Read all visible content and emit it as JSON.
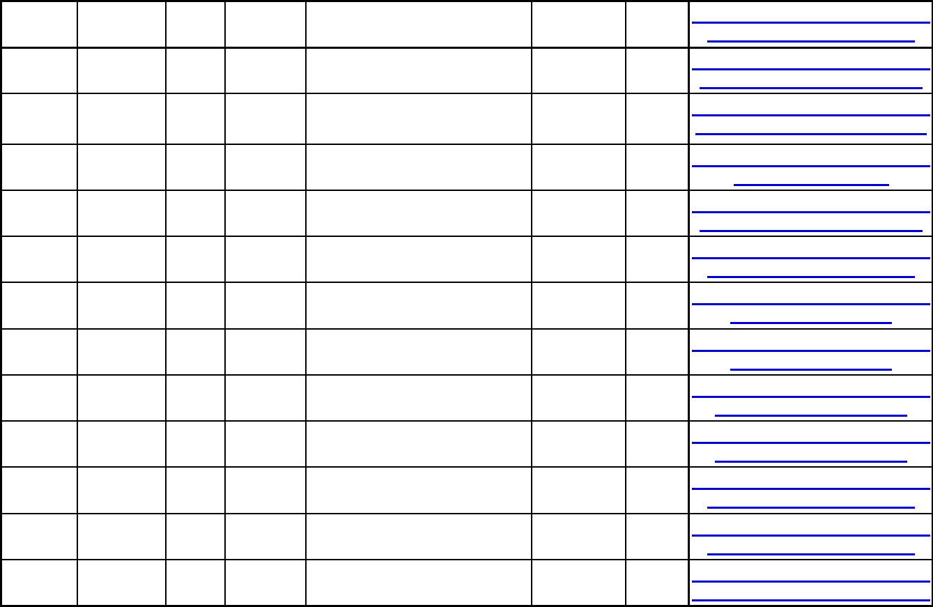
{
  "colors": {
    "link": "#0000cc",
    "border": "#000000"
  },
  "table": {
    "rows": [
      {
        "link": ""
      },
      {
        "link": ""
      },
      {
        "link": ""
      },
      {
        "link": ""
      },
      {
        "link": ""
      },
      {
        "link": ""
      },
      {
        "link": ""
      },
      {
        "link": ""
      },
      {
        "link": ""
      },
      {
        "link": ""
      },
      {
        "link": ""
      },
      {
        "link": ""
      },
      {
        "link": ""
      }
    ]
  }
}
